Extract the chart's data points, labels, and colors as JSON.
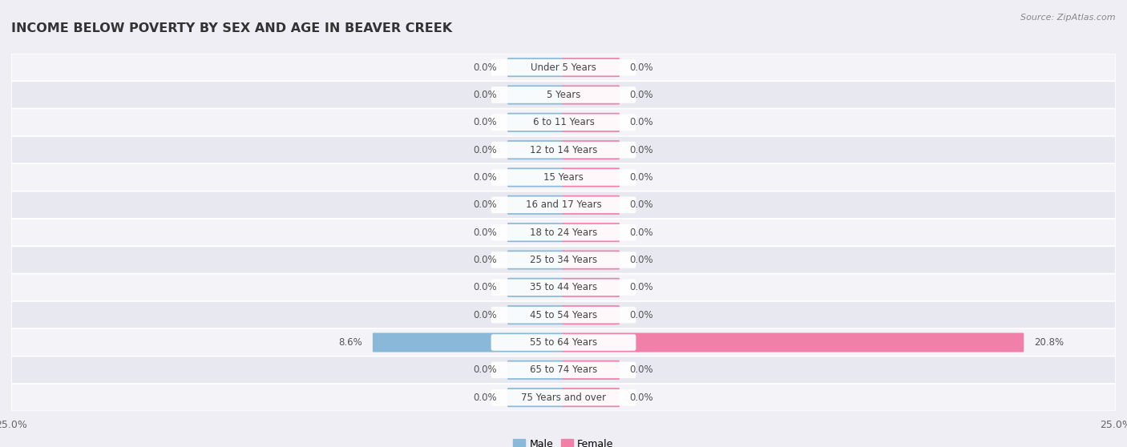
{
  "title": "INCOME BELOW POVERTY BY SEX AND AGE IN BEAVER CREEK",
  "source": "Source: ZipAtlas.com",
  "categories": [
    "Under 5 Years",
    "5 Years",
    "6 to 11 Years",
    "12 to 14 Years",
    "15 Years",
    "16 and 17 Years",
    "18 to 24 Years",
    "25 to 34 Years",
    "35 to 44 Years",
    "45 to 54 Years",
    "55 to 64 Years",
    "65 to 74 Years",
    "75 Years and over"
  ],
  "male_values": [
    0.0,
    0.0,
    0.0,
    0.0,
    0.0,
    0.0,
    0.0,
    0.0,
    0.0,
    0.0,
    8.6,
    0.0,
    0.0
  ],
  "female_values": [
    0.0,
    0.0,
    0.0,
    0.0,
    0.0,
    0.0,
    0.0,
    0.0,
    0.0,
    0.0,
    20.8,
    0.0,
    0.0
  ],
  "male_color": "#89b8d8",
  "female_color": "#f080a8",
  "male_label": "Male",
  "female_label": "Female",
  "xlim": 25.0,
  "stub_size": 2.5,
  "bar_height": 0.62,
  "bg_color": "#eeeef4",
  "row_bg_colors": [
    "#f4f4f8",
    "#e8e8f0"
  ],
  "row_sep_color": "#ffffff",
  "title_fontsize": 11.5,
  "label_fontsize": 8.5,
  "tick_fontsize": 9,
  "source_fontsize": 8,
  "value_fontsize": 8.5
}
